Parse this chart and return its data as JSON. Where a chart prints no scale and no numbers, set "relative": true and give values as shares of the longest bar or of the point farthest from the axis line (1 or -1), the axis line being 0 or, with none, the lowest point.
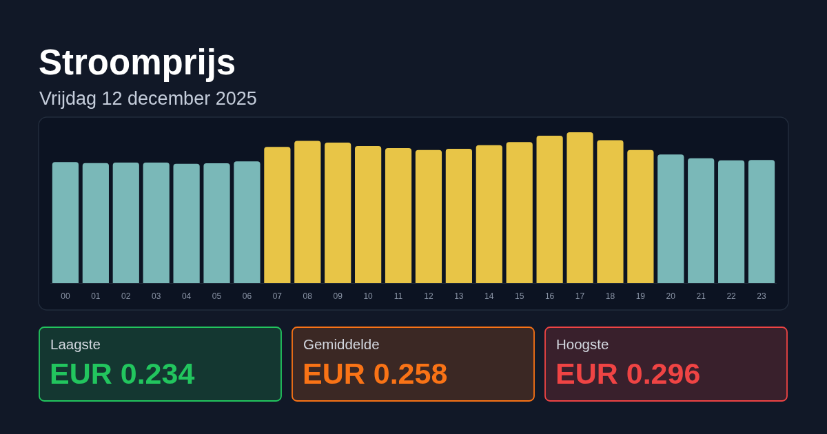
{
  "chart_data": [
    {
      "type": "bar",
      "title": "Stroomprijs",
      "subtitle": "Vrijdag 12 december 2025",
      "categories": [
        "00",
        "01",
        "02",
        "03",
        "04",
        "05",
        "06",
        "07",
        "08",
        "09",
        "10",
        "11",
        "12",
        "13",
        "14",
        "15",
        "16",
        "17",
        "18",
        "19",
        "20",
        "21",
        "22",
        "23"
      ],
      "values": [
        0.802,
        0.796,
        0.799,
        0.799,
        0.791,
        0.794,
        0.807,
        0.903,
        0.943,
        0.932,
        0.909,
        0.895,
        0.882,
        0.89,
        0.914,
        0.935,
        0.977,
        1,
        0.948,
        0.882,
        0.853,
        0.828,
        0.814,
        0.816
      ],
      "colors": [
        "#7ab8b8",
        "#7ab8b8",
        "#7ab8b8",
        "#7ab8b8",
        "#7ab8b8",
        "#7ab8b8",
        "#7ab8b8",
        "#e8c547",
        "#e8c547",
        "#e8c547",
        "#e8c547",
        "#e8c547",
        "#e8c547",
        "#e8c547",
        "#e8c547",
        "#e8c547",
        "#e8c547",
        "#e8c547",
        "#e8c547",
        "#e8c547",
        "#7ab8b8",
        "#7ab8b8",
        "#7ab8b8",
        "#7ab8b8"
      ],
      "relative": true
    },
    {
      "type": "other",
      "title": "Laagste",
      "annotations": [
        "EUR 0.234"
      ],
      "color": "#22c55e"
    },
    {
      "type": "other",
      "title": "Gemiddelde",
      "annotations": [
        "EUR 0.258"
      ],
      "color": "#f97316"
    },
    {
      "type": "other",
      "title": "Hoogste",
      "annotations": [
        "EUR 0.296"
      ],
      "color": "#ef4444"
    }
  ]
}
